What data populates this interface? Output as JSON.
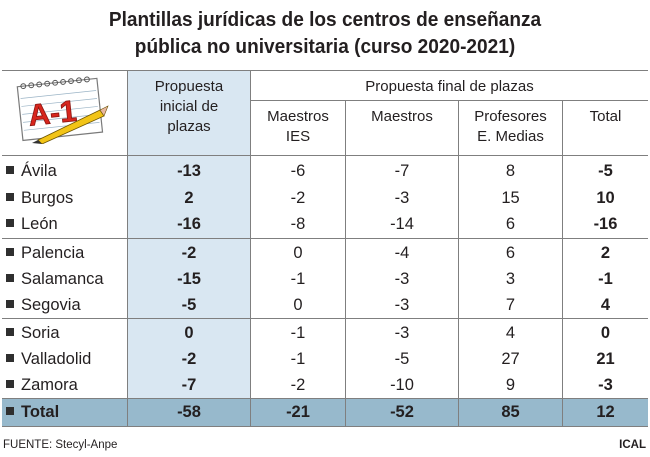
{
  "title": {
    "line1": "Plantillas jurídicas de los centros de enseñanza",
    "line2": "pública no universitaria (curso 2020-2021)"
  },
  "logo_text": "A-1",
  "header": {
    "propuesta_inicial": [
      "Propuesta",
      "inicial de",
      "plazas"
    ],
    "propuesta_final": "Propuesta final de plazas",
    "maestros_ies": [
      "Maestros",
      "IES"
    ],
    "maestros": "Maestros",
    "profesores": [
      "Profesores",
      "E. Medias"
    ],
    "total": "Total"
  },
  "rows": [
    {
      "name": "Ávila",
      "inicial": "-13",
      "ies": "-6",
      "maestros": "-7",
      "profesores": "8",
      "total": "-5"
    },
    {
      "name": "Burgos",
      "inicial": "2",
      "ies": "-2",
      "maestros": "-3",
      "profesores": "15",
      "total": "10"
    },
    {
      "name": "León",
      "inicial": "-16",
      "ies": "-8",
      "maestros": "-14",
      "profesores": "6",
      "total": "-16"
    },
    {
      "name": "Palencia",
      "inicial": "-2",
      "ies": "0",
      "maestros": "-4",
      "profesores": "6",
      "total": "2"
    },
    {
      "name": "Salamanca",
      "inicial": "-15",
      "ies": "-1",
      "maestros": "-3",
      "profesores": "3",
      "total": "-1"
    },
    {
      "name": "Segovia",
      "inicial": "-5",
      "ies": "0",
      "maestros": "-3",
      "profesores": "7",
      "total": "4"
    },
    {
      "name": "Soria",
      "inicial": "0",
      "ies": "-1",
      "maestros": "-3",
      "profesores": "4",
      "total": "0"
    },
    {
      "name": "Valladolid",
      "inicial": "-2",
      "ies": "-1",
      "maestros": "-5",
      "profesores": "27",
      "total": "21"
    },
    {
      "name": "Zamora",
      "inicial": "-7",
      "ies": "-2",
      "maestros": "-10",
      "profesores": "9",
      "total": "-3"
    }
  ],
  "total_row": {
    "name": "Total",
    "inicial": "-58",
    "ies": "-21",
    "maestros": "-52",
    "profesores": "85",
    "total": "12"
  },
  "footer": {
    "source": "FUENTE: Stecyl-Anpe",
    "agency": "ICAL"
  },
  "colors": {
    "highlight_column": "#d9e7f2",
    "total_row": "#97b9cc",
    "logo_red": "#d7261e",
    "pencil_yellow": "#f2c417"
  }
}
